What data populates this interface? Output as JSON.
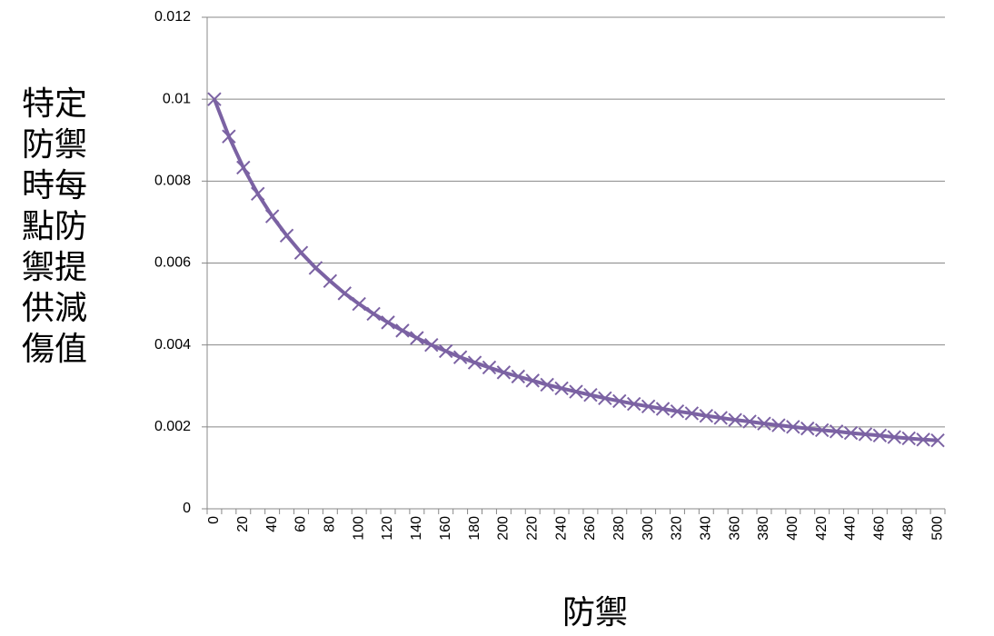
{
  "chart_data": {
    "type": "line",
    "y_label": "特定防禦時每點防禦提供減傷值",
    "x_label": "防禦",
    "categories": [
      "0",
      null,
      "20",
      null,
      "40",
      null,
      "60",
      null,
      "80",
      null,
      "100",
      null,
      "120",
      null,
      "140",
      null,
      "160",
      null,
      "180",
      null,
      "200",
      null,
      "220",
      null,
      "240",
      null,
      "260",
      null,
      "280",
      null,
      "300",
      null,
      "320",
      null,
      "340",
      null,
      "360",
      null,
      "380",
      null,
      "400",
      null,
      "420",
      null,
      "440",
      null,
      "460",
      null,
      "480",
      null,
      "500"
    ],
    "values": [
      0.01,
      0.00909,
      0.00833,
      0.00769,
      0.00714,
      0.00667,
      0.00625,
      0.00588,
      0.00556,
      0.00526,
      0.005,
      0.00476,
      0.00455,
      0.00435,
      0.00417,
      0.004,
      0.00385,
      0.0037,
      0.00357,
      0.00345,
      0.00333,
      0.00323,
      0.00313,
      0.00303,
      0.00294,
      0.00286,
      0.00278,
      0.0027,
      0.00263,
      0.00256,
      0.0025,
      0.00244,
      0.00238,
      0.00233,
      0.00227,
      0.00222,
      0.00217,
      0.00213,
      0.00208,
      0.00204,
      0.002,
      0.00196,
      0.00192,
      0.00189,
      0.00185,
      0.00182,
      0.00179,
      0.00175,
      0.00172,
      0.00169,
      0.00167
    ],
    "color": "#7b62a3",
    "ylim": [
      0,
      0.012
    ],
    "yticks": [
      0,
      0.002,
      0.004,
      0.006,
      0.008,
      0.01,
      0.012
    ],
    "grid": true
  }
}
